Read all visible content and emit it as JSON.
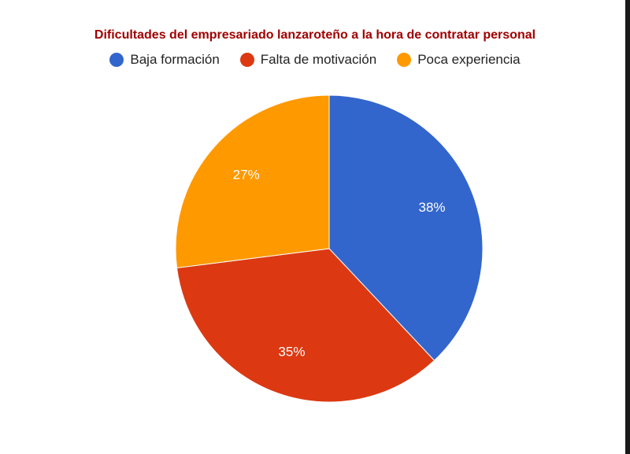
{
  "chart_data": {
    "type": "pie",
    "title": "Dificultades del empresariado lanzaroteño a la hora de contratar personal",
    "legend_position": "top",
    "slices": [
      {
        "label": "Baja formación",
        "value": 38,
        "display": "38%",
        "color": "#3366cc"
      },
      {
        "label": "Falta de motivación",
        "value": 35,
        "display": "35%",
        "color": "#dc3912"
      },
      {
        "label": "Poca experiencia",
        "value": 27,
        "display": "27%",
        "color": "#ff9900"
      }
    ]
  }
}
